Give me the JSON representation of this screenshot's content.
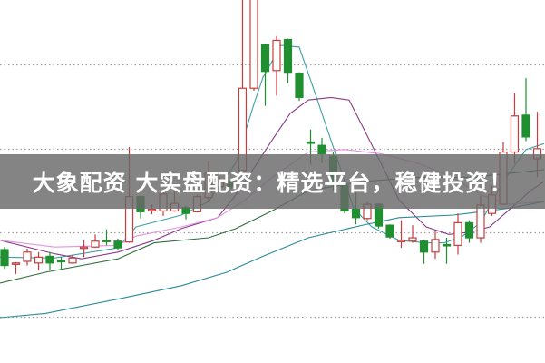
{
  "banner": {
    "text": "大象配资 大实盘配资：精选平台，稳健投资！"
  },
  "chart_data": {
    "type": "candlestick",
    "title": "",
    "xlabel": "",
    "ylabel": "",
    "ylim": [
      0.45,
      4.77
    ],
    "grid": {
      "on": true,
      "style": "dotted",
      "levels": [
        1,
        2,
        3,
        4
      ]
    },
    "colors": {
      "up": "#c83c3c",
      "down": "#1f8f2f",
      "grid": "#a0a0a0"
    },
    "candles_ohlc": [
      [
        1.8,
        1.83,
        1.57,
        1.61
      ],
      [
        1.63,
        1.65,
        1.51,
        1.64
      ],
      [
        1.66,
        1.81,
        1.61,
        1.77
      ],
      [
        1.64,
        1.77,
        1.55,
        1.71
      ],
      [
        1.72,
        1.77,
        1.56,
        1.64
      ],
      [
        1.67,
        1.71,
        1.57,
        1.66
      ],
      [
        1.64,
        1.74,
        1.63,
        1.7
      ],
      [
        1.82,
        1.91,
        1.71,
        1.83
      ],
      [
        1.83,
        1.98,
        1.82,
        1.9
      ],
      [
        1.91,
        2.04,
        1.85,
        1.9
      ],
      [
        1.9,
        1.93,
        1.79,
        1.82
      ],
      [
        1.89,
        3.02,
        1.88,
        2.43
      ],
      [
        2.43,
        2.44,
        2.17,
        2.25
      ],
      [
        2.27,
        2.34,
        2.22,
        2.28
      ],
      [
        2.26,
        2.5,
        2.2,
        2.46
      ],
      [
        2.26,
        2.5,
        2.25,
        2.35
      ],
      [
        2.3,
        2.32,
        2.16,
        2.23
      ],
      [
        2.25,
        2.45,
        2.24,
        2.43
      ],
      [
        2.42,
        2.86,
        2.36,
        2.72
      ],
      [
        2.55,
        2.66,
        2.5,
        2.61
      ],
      [
        2.61,
        2.63,
        2.52,
        2.55
      ],
      [
        2.74,
        4.8,
        2.72,
        3.72
      ],
      [
        3.72,
        4.9,
        3.69,
        4.85
      ],
      [
        4.24,
        4.25,
        3.51,
        3.92
      ],
      [
        3.93,
        4.34,
        3.63,
        4.29
      ],
      [
        4.3,
        4.31,
        3.78,
        3.91
      ],
      [
        3.9,
        3.91,
        3.57,
        3.61
      ],
      [
        3.08,
        3.23,
        2.81,
        3.07
      ],
      [
        3.04,
        3.13,
        2.83,
        2.94
      ],
      [
        2.91,
        2.96,
        2.5,
        2.59
      ],
      [
        2.56,
        2.57,
        2.23,
        2.26
      ],
      [
        2.28,
        2.48,
        2.1,
        2.18
      ],
      [
        2.17,
        2.37,
        2.15,
        2.34
      ],
      [
        2.34,
        2.35,
        2.05,
        2.08
      ],
      [
        2.09,
        2.1,
        1.93,
        1.95
      ],
      [
        1.9,
        2.15,
        1.82,
        1.91
      ],
      [
        1.9,
        2.09,
        1.88,
        1.94
      ],
      [
        1.9,
        1.92,
        1.63,
        1.77
      ],
      [
        1.77,
        2.02,
        1.69,
        1.92
      ],
      [
        1.86,
        1.94,
        1.63,
        1.85
      ],
      [
        1.85,
        2.23,
        1.74,
        2.12
      ],
      [
        2.12,
        2.15,
        1.88,
        1.94
      ],
      [
        1.94,
        2.44,
        1.88,
        2.33
      ],
      [
        2.23,
        2.56,
        2.2,
        2.45
      ],
      [
        2.34,
        3.08,
        2.33,
        2.96
      ],
      [
        2.96,
        3.66,
        2.82,
        3.39
      ],
      [
        3.4,
        3.84,
        3.09,
        3.14
      ],
      [
        2.88,
        3.44,
        2.66,
        3.0
      ]
    ],
    "moving_averages": [
      {
        "color": "#3f9fa6",
        "points": [
          [
            -0.4,
            1.71
          ],
          [
            4.4,
            1.7
          ],
          [
            10,
            1.82
          ],
          [
            11.6,
            2.07
          ],
          [
            15.6,
            2.21
          ],
          [
            18,
            2.37
          ],
          [
            20.4,
            2.83
          ],
          [
            22,
            3.53
          ],
          [
            22.8,
            3.85
          ],
          [
            24.4,
            4.23
          ],
          [
            26,
            4.21
          ],
          [
            27.6,
            3.58
          ],
          [
            29.2,
            2.94
          ],
          [
            30.8,
            2.29
          ],
          [
            32.4,
            2.07
          ],
          [
            34.8,
            1.91
          ],
          [
            37.2,
            1.88
          ],
          [
            38.8,
            1.88
          ],
          [
            40.4,
            1.96
          ],
          [
            42,
            2.12
          ],
          [
            44,
            2.61
          ],
          [
            46,
            2.99
          ],
          [
            47.6,
            3.06
          ]
        ]
      },
      {
        "color": "#8a3a8a",
        "points": [
          [
            -0.4,
            1.91
          ],
          [
            4.4,
            1.75
          ],
          [
            6.8,
            1.69
          ],
          [
            10,
            1.77
          ],
          [
            13.2,
            1.91
          ],
          [
            15.6,
            2.05
          ],
          [
            18.8,
            2.18
          ],
          [
            20.4,
            2.45
          ],
          [
            22,
            2.77
          ],
          [
            23.6,
            3.1
          ],
          [
            25.2,
            3.42
          ],
          [
            26.8,
            3.58
          ],
          [
            28.8,
            3.61
          ],
          [
            30.4,
            3.58
          ],
          [
            31.6,
            3.26
          ],
          [
            33.2,
            2.83
          ],
          [
            34.8,
            2.39
          ],
          [
            37.2,
            2.07
          ],
          [
            39.2,
            1.98
          ],
          [
            41.2,
            2.01
          ],
          [
            42.8,
            2.07
          ],
          [
            44.4,
            2.26
          ],
          [
            46.4,
            2.5
          ],
          [
            47.6,
            2.61
          ]
        ]
      },
      {
        "color": "#e394e3",
        "points": [
          [
            -0.4,
            1.91
          ],
          [
            4.4,
            1.83
          ],
          [
            10,
            1.85
          ],
          [
            11.6,
            1.96
          ],
          [
            15.6,
            2.07
          ],
          [
            18.8,
            2.18
          ],
          [
            21.2,
            2.39
          ],
          [
            23.6,
            2.66
          ],
          [
            26.8,
            2.96
          ],
          [
            30,
            2.99
          ],
          [
            33.2,
            2.94
          ],
          [
            36.4,
            2.83
          ],
          [
            39.6,
            2.66
          ],
          [
            42,
            2.45
          ],
          [
            44.4,
            2.34
          ],
          [
            47.6,
            2.37
          ]
        ]
      },
      {
        "color": "#2f6f3f",
        "points": [
          [
            -0.4,
            1.4
          ],
          [
            3.6,
            1.53
          ],
          [
            10,
            1.69
          ],
          [
            13.2,
            1.88
          ],
          [
            18,
            1.94
          ],
          [
            20.4,
            2.05
          ],
          [
            23.6,
            2.26
          ],
          [
            26.8,
            2.5
          ],
          [
            31.6,
            2.61
          ],
          [
            36.4,
            2.66
          ],
          [
            41.2,
            2.66
          ],
          [
            47.6,
            2.75
          ]
        ]
      },
      {
        "color": "#2a8a9a",
        "points": [
          [
            -0.4,
            0.99
          ],
          [
            3.6,
            1.04
          ],
          [
            10,
            1.21
          ],
          [
            15.6,
            1.37
          ],
          [
            19.6,
            1.53
          ],
          [
            22.8,
            1.72
          ],
          [
            26.8,
            1.94
          ],
          [
            31.6,
            2.09
          ],
          [
            34.8,
            2.18
          ],
          [
            39.6,
            2.21
          ],
          [
            44.4,
            2.29
          ],
          [
            47.6,
            2.37
          ]
        ]
      }
    ]
  }
}
